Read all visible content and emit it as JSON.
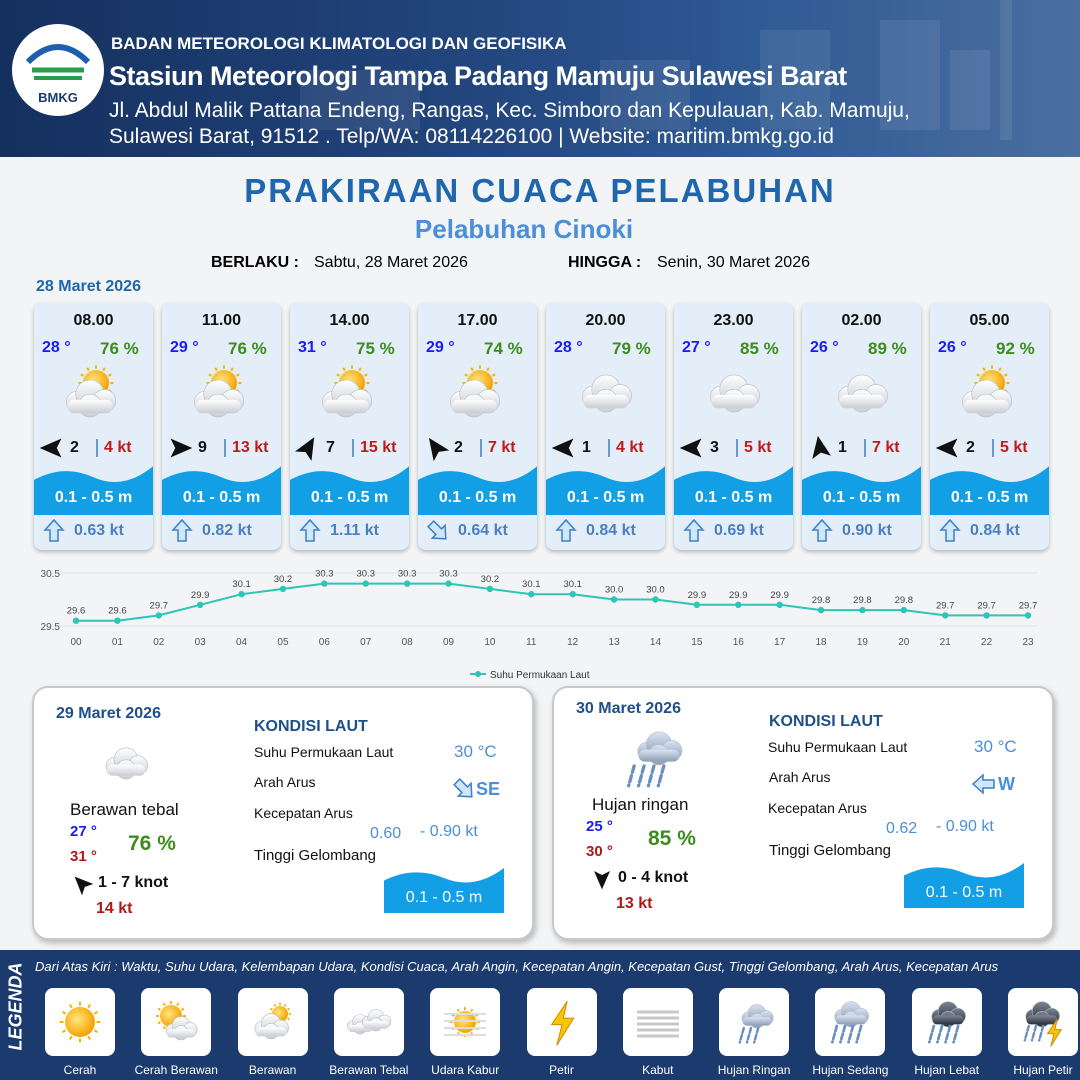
{
  "header": {
    "logo": "BMKG",
    "org": "BADAN METEOROLOGI KLIMATOLOGI DAN GEOFISIKA",
    "station": "Stasiun Meteorologi Tampa Padang Mamuju Sulawesi Barat",
    "address_1": "Jl. Abdul Malik Pattana Endeng, Rangas, Kec. Simboro dan Kepulauan, Kab. Mamuju,",
    "address_2": "Sulawesi Barat, 91512 . Telp/WA: 08114226100 | Website: maritim.bmkg.go.id"
  },
  "title": "PRAKIRAAN CUACA PELABUHAN",
  "subtitle": "Pelabuhan Cinoki",
  "valid_from_label": "BERLAKU :",
  "valid_from": "Sabtu, 28 Maret 2026",
  "valid_to_label": "HINGGA :",
  "valid_to": "Senin, 30 Maret 2026",
  "day1": {
    "date": "28 Maret 2026",
    "cards": [
      {
        "time": "08.00",
        "temp": "28 °",
        "humidity": "76 %",
        "wind": "2",
        "gust": "4 kt",
        "wave": "0.1 - 0.5 m",
        "current": "0.63 kt"
      },
      {
        "time": "11.00",
        "temp": "29 °",
        "humidity": "76 %",
        "wind": "9",
        "gust": "13 kt",
        "wave": "0.1 - 0.5 m",
        "current": "0.82 kt"
      },
      {
        "time": "14.00",
        "temp": "31 °",
        "humidity": "75 %",
        "wind": "7",
        "gust": "15 kt",
        "wave": "0.1 - 0.5 m",
        "current": "1.11 kt"
      },
      {
        "time": "17.00",
        "temp": "29 °",
        "humidity": "74 %",
        "wind": "2",
        "gust": "7 kt",
        "wave": "0.1 - 0.5 m",
        "current": "0.64 kt"
      },
      {
        "time": "20.00",
        "temp": "28 °",
        "humidity": "79 %",
        "wind": "1",
        "gust": "4 kt",
        "wave": "0.1 - 0.5 m",
        "current": "0.84 kt"
      },
      {
        "time": "23.00",
        "temp": "27 °",
        "humidity": "85 %",
        "wind": "3",
        "gust": "5 kt",
        "wave": "0.1 - 0.5 m",
        "current": "0.69 kt"
      },
      {
        "time": "02.00",
        "temp": "26 °",
        "humidity": "89 %",
        "wind": "1",
        "gust": "7 kt",
        "wave": "0.1 - 0.5 m",
        "current": "0.90 kt"
      },
      {
        "time": "05.00",
        "temp": "26 °",
        "humidity": "92 %",
        "wind": "2",
        "gust": "5 kt",
        "wave": "0.1 - 0.5 m",
        "current": "0.84 kt"
      }
    ]
  },
  "sst_chart": {
    "type": "line",
    "categories": [
      "00",
      "01",
      "02",
      "03",
      "04",
      "05",
      "06",
      "07",
      "08",
      "09",
      "10",
      "11",
      "12",
      "13",
      "14",
      "15",
      "16",
      "17",
      "18",
      "19",
      "20",
      "21",
      "22",
      "23"
    ],
    "series": [
      {
        "name": "Suhu Permukaan Laut",
        "color": "#2ec4b6",
        "values": [
          29.6,
          29.6,
          29.7,
          29.9,
          30.1,
          30.2,
          30.3,
          30.3,
          30.3,
          30.3,
          30.2,
          30.1,
          30.1,
          30.0,
          30.0,
          29.9,
          29.9,
          29.9,
          29.8,
          29.8,
          29.8,
          29.7,
          29.7,
          29.7
        ],
        "value_labels": [
          "29.6",
          "29.6",
          "29.7",
          "29.9",
          "30.1",
          "30.2",
          "30.3",
          "30.3",
          "30.3",
          "30.3",
          "30.2",
          "30.1",
          "30.1",
          "30.0",
          "30.0",
          "29.9",
          "29.9",
          "29.9",
          "29.8",
          "29.8",
          "29.8",
          "29.7",
          "29.7",
          "29.7"
        ]
      }
    ],
    "ylim": [
      29.5,
      30.5
    ],
    "yticks": [
      29.5,
      30.5
    ],
    "legend": "bottom"
  },
  "days": [
    {
      "date": "29 Maret 2026",
      "condition": "Berawan tebal",
      "temp_min": "27 °",
      "temp_max": "31 °",
      "humidity": "76 %",
      "wind": "1 - 7 knot",
      "gust": "14 kt",
      "sea_heading": "KONDISI LAUT",
      "sst_label": "Suhu Permukaan Laut",
      "sst": "30 °C",
      "current_dir_label": "Arah Arus",
      "current_dir": "SE",
      "current_speed_label": "Kecepatan Arus",
      "current_speed_min": "0.60",
      "current_speed_max": "- 0.90 kt",
      "wave_label": "Tinggi Gelombang",
      "wave": "0.1 - 0.5 m"
    },
    {
      "date": "30 Maret 2026",
      "condition": "Hujan ringan",
      "temp_min": "25 °",
      "temp_max": "30 °",
      "humidity": "85 %",
      "wind": "0 - 4 knot",
      "gust": "13 kt",
      "sea_heading": "KONDISI LAUT",
      "sst_label": "Suhu Permukaan Laut",
      "sst": "30 °C",
      "current_dir_label": "Arah Arus",
      "current_dir": "W",
      "current_speed_label": "Kecepatan Arus",
      "current_speed_min": "0.62",
      "current_speed_max": "- 0.90 kt",
      "wave_label": "Tinggi Gelombang",
      "wave": "0.1 - 0.5 m"
    }
  ],
  "legend": {
    "label": "LEGENDA",
    "description": "Dari Atas Kiri : Waktu, Suhu Udara, Kelembapan Udara, Kondisi Cuaca, Arah Angin, Kecepatan Angin, Kecepatan Gust, Tinggi Gelombang, Arah Arus, Kecepatan Arus",
    "items": [
      "Cerah",
      "Cerah Berawan",
      "Berawan",
      "Berawan Tebal",
      "Udara Kabur",
      "Petir",
      "Kabut",
      "Hujan Ringan",
      "Hujan Sedang",
      "Hujan Lebat",
      "Hujan Petir"
    ]
  }
}
